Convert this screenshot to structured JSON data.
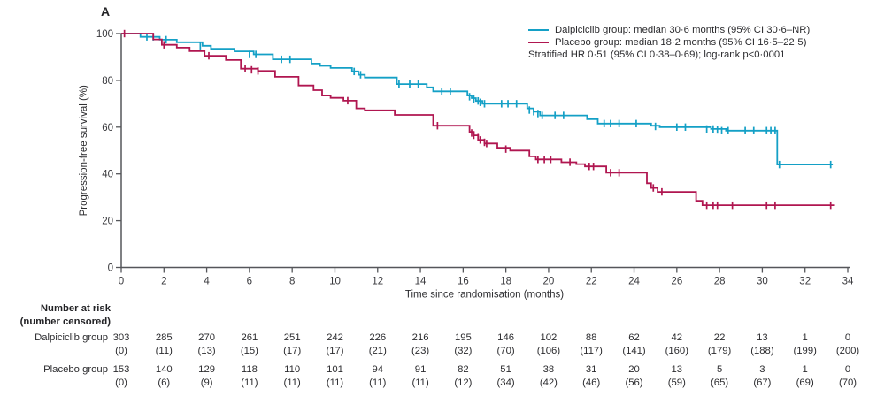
{
  "panel_label": "A",
  "colors": {
    "dalpiciclib": "#14a0c6",
    "placebo": "#b01650",
    "axis": "#55565a",
    "text": "#2b2b2e"
  },
  "legend": {
    "dalpiciclib_label": "Dalpiciclib group: median 30·6 months (95% CI 30·6–NR)",
    "placebo_label": "Placebo group: median 18·2 months (95% CI 16·5–22·5)",
    "stats_line": "Stratified HR 0·51 (95% CI 0·38–0·69); log-rank p<0·0001"
  },
  "chart_data": {
    "type": "line",
    "subtype": "kaplan_meier_step",
    "title": "",
    "xlabel": "Time since randomisation (months)",
    "ylabel": "Progression-free survival (%)",
    "xlim": [
      0,
      34
    ],
    "ylim": [
      0,
      100
    ],
    "xticks": [
      0,
      2,
      4,
      6,
      8,
      10,
      12,
      14,
      16,
      18,
      20,
      22,
      24,
      26,
      28,
      30,
      32,
      34
    ],
    "yticks": [
      0,
      20,
      40,
      60,
      80,
      100
    ],
    "grid": false,
    "legend_position": "top-right",
    "series": [
      {
        "name": "Dalpiciclib group",
        "color": "#14a0c6",
        "median": "30·6 months",
        "ci_95": "30·6–NR",
        "steps": [
          [
            0,
            100
          ],
          [
            0.9,
            98.6
          ],
          [
            1.8,
            97.4
          ],
          [
            2.6,
            96.3
          ],
          [
            3.8,
            94.8
          ],
          [
            4.2,
            93.5
          ],
          [
            5.3,
            92.4
          ],
          [
            6.2,
            91.1
          ],
          [
            7.1,
            89
          ],
          [
            8.9,
            87.2
          ],
          [
            9.3,
            86.2
          ],
          [
            9.8,
            85.3
          ],
          [
            10.8,
            83.8
          ],
          [
            11.1,
            82.4
          ],
          [
            11.4,
            81.2
          ],
          [
            12.9,
            78.4
          ],
          [
            14.3,
            77
          ],
          [
            14.6,
            75.3
          ],
          [
            16.2,
            73.5
          ],
          [
            16.4,
            72.4
          ],
          [
            16.6,
            71.2
          ],
          [
            16.9,
            70
          ],
          [
            19,
            68
          ],
          [
            19.3,
            66.6
          ],
          [
            19.6,
            65
          ],
          [
            21.8,
            63.4
          ],
          [
            22.3,
            61.5
          ],
          [
            24.8,
            60.6
          ],
          [
            25.2,
            60
          ],
          [
            27.6,
            59.2
          ],
          [
            28.3,
            58.5
          ],
          [
            30.7,
            44
          ],
          [
            33.3,
            44
          ]
        ],
        "censor_marks": [
          [
            1.2,
            98.6
          ],
          [
            1.5,
            98.6
          ],
          [
            2.1,
            97.4
          ],
          [
            3.7,
            94.8
          ],
          [
            6,
            91.1
          ],
          [
            6.3,
            91.1
          ],
          [
            7.5,
            89
          ],
          [
            7.9,
            89
          ],
          [
            10.9,
            83.8
          ],
          [
            11.2,
            82.4
          ],
          [
            13,
            78.4
          ],
          [
            13.5,
            78.4
          ],
          [
            13.9,
            78.4
          ],
          [
            15,
            75.3
          ],
          [
            15.4,
            75.3
          ],
          [
            16.3,
            73
          ],
          [
            16.5,
            72
          ],
          [
            16.7,
            71.2
          ],
          [
            16.8,
            70.6
          ],
          [
            17,
            70
          ],
          [
            17.8,
            70
          ],
          [
            18.1,
            70
          ],
          [
            18.5,
            70
          ],
          [
            19.1,
            67.3
          ],
          [
            19.3,
            66.6
          ],
          [
            19.5,
            65.8
          ],
          [
            19.7,
            65
          ],
          [
            20.3,
            65
          ],
          [
            20.7,
            65
          ],
          [
            22.6,
            61.5
          ],
          [
            22.9,
            61.5
          ],
          [
            23.3,
            61.5
          ],
          [
            24.1,
            61.5
          ],
          [
            25,
            60.3
          ],
          [
            26,
            60
          ],
          [
            26.4,
            60
          ],
          [
            27.4,
            59.2
          ],
          [
            27.7,
            59.2
          ],
          [
            27.9,
            58.8
          ],
          [
            28.1,
            58.5
          ],
          [
            28.4,
            58.5
          ],
          [
            29.2,
            58.5
          ],
          [
            29.6,
            58.5
          ],
          [
            30.2,
            58.5
          ],
          [
            30.4,
            58.5
          ],
          [
            30.6,
            58.5
          ],
          [
            30.8,
            44
          ],
          [
            33.2,
            44
          ]
        ]
      },
      {
        "name": "Placebo group",
        "color": "#b01650",
        "median": "18·2 months",
        "ci_95": "16·5–22·5",
        "steps": [
          [
            0,
            100
          ],
          [
            1.5,
            97.5
          ],
          [
            1.9,
            95.2
          ],
          [
            2.6,
            94
          ],
          [
            3.2,
            92.5
          ],
          [
            3.9,
            90.5
          ],
          [
            4.9,
            88.7
          ],
          [
            5.6,
            85
          ],
          [
            6.4,
            84
          ],
          [
            7.2,
            81.5
          ],
          [
            8.3,
            77.8
          ],
          [
            9,
            75.8
          ],
          [
            9.4,
            73.5
          ],
          [
            9.8,
            72.5
          ],
          [
            10.4,
            71.3
          ],
          [
            11,
            68
          ],
          [
            11.4,
            67.2
          ],
          [
            12.8,
            65.2
          ],
          [
            14.6,
            60.6
          ],
          [
            16.3,
            58
          ],
          [
            16.5,
            56.5
          ],
          [
            16.7,
            54.5
          ],
          [
            17,
            53
          ],
          [
            17.6,
            51.2
          ],
          [
            18.2,
            50
          ],
          [
            19.1,
            47.5
          ],
          [
            19.4,
            46.2
          ],
          [
            20.6,
            45
          ],
          [
            21.3,
            44.2
          ],
          [
            21.7,
            43.2
          ],
          [
            22.7,
            40.5
          ],
          [
            24.6,
            36
          ],
          [
            24.8,
            34
          ],
          [
            25.1,
            32.3
          ],
          [
            26.9,
            28.5
          ],
          [
            27.2,
            26.6
          ],
          [
            33.4,
            26.6
          ]
        ],
        "censor_marks": [
          [
            0.15,
            100
          ],
          [
            2,
            95.2
          ],
          [
            4.1,
            90.5
          ],
          [
            5.8,
            85
          ],
          [
            6.1,
            84.5
          ],
          [
            6.4,
            84
          ],
          [
            10.6,
            71.3
          ],
          [
            14.8,
            60.6
          ],
          [
            16.4,
            57.5
          ],
          [
            16.5,
            56.5
          ],
          [
            16.7,
            55.5
          ],
          [
            16.8,
            54.5
          ],
          [
            17,
            53.5
          ],
          [
            17.1,
            53
          ],
          [
            18,
            50.6
          ],
          [
            19.5,
            46.2
          ],
          [
            19.8,
            46.2
          ],
          [
            20.1,
            46.2
          ],
          [
            21,
            45
          ],
          [
            21.9,
            43.2
          ],
          [
            22.1,
            43.2
          ],
          [
            22.9,
            40.5
          ],
          [
            23.3,
            40.5
          ],
          [
            24.9,
            34
          ],
          [
            25.3,
            32.3
          ],
          [
            27.4,
            26.6
          ],
          [
            27.7,
            26.6
          ],
          [
            27.9,
            26.6
          ],
          [
            28.6,
            26.6
          ],
          [
            30.2,
            26.6
          ],
          [
            30.6,
            26.6
          ],
          [
            33.2,
            26.6
          ]
        ]
      }
    ]
  },
  "risk_table": {
    "header_line1": "Number at risk",
    "header_line2": "(number censored)",
    "timepoints": [
      0,
      2,
      4,
      6,
      8,
      10,
      12,
      14,
      16,
      18,
      20,
      22,
      24,
      26,
      28,
      30,
      32,
      34
    ],
    "rows": [
      {
        "label": "Dalpiciclib group",
        "at_risk": [
          303,
          285,
          270,
          261,
          251,
          242,
          226,
          216,
          195,
          146,
          102,
          88,
          62,
          42,
          22,
          13,
          1,
          0
        ],
        "censored": [
          "(0)",
          "(11)",
          "(13)",
          "(15)",
          "(17)",
          "(17)",
          "(21)",
          "(23)",
          "(32)",
          "(70)",
          "(106)",
          "(117)",
          "(141)",
          "(160)",
          "(179)",
          "(188)",
          "(199)",
          "(200)"
        ]
      },
      {
        "label": "Placebo group",
        "at_risk": [
          153,
          140,
          129,
          118,
          110,
          101,
          94,
          91,
          82,
          51,
          38,
          31,
          20,
          13,
          5,
          3,
          1,
          0
        ],
        "censored": [
          "(0)",
          "(6)",
          "(9)",
          "(11)",
          "(11)",
          "(11)",
          "(11)",
          "(11)",
          "(12)",
          "(34)",
          "(42)",
          "(46)",
          "(56)",
          "(59)",
          "(65)",
          "(67)",
          "(69)",
          "(70)"
        ]
      }
    ]
  }
}
